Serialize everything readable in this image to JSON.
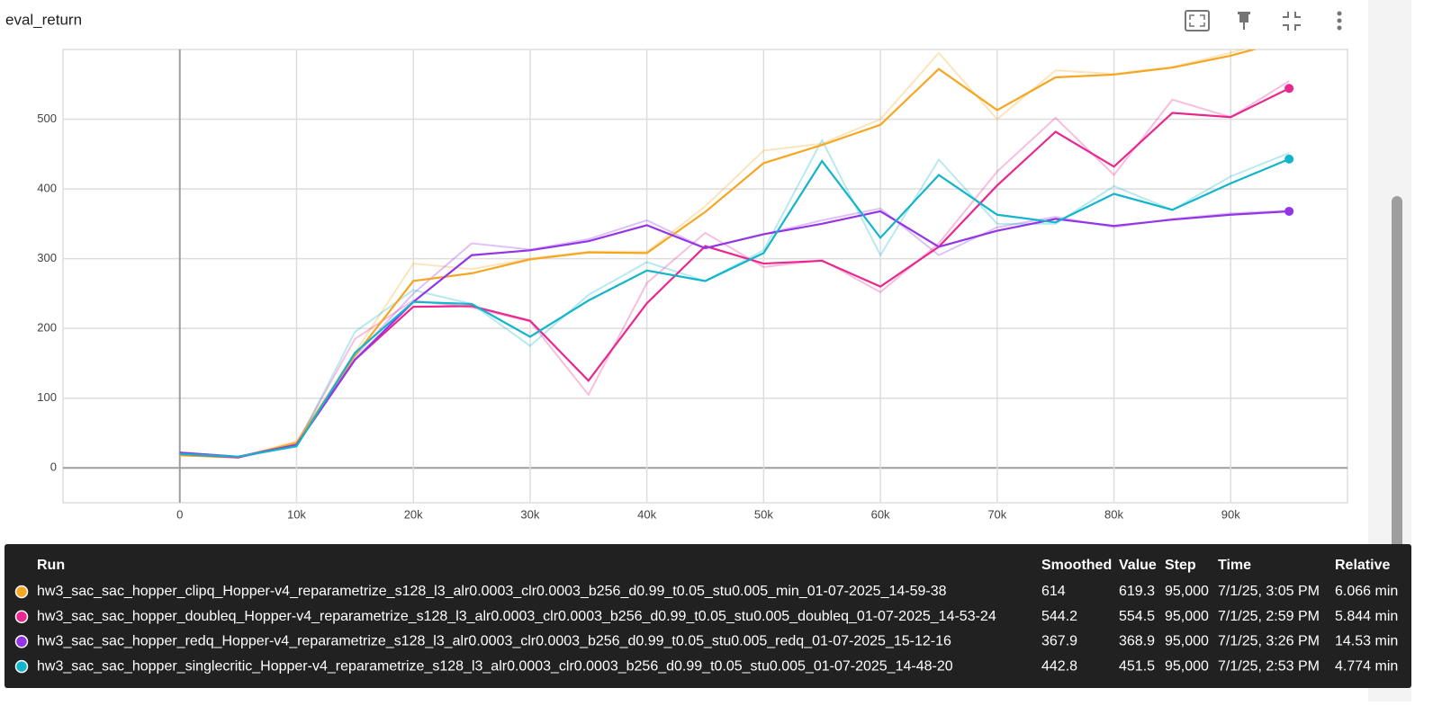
{
  "header": {
    "title": "eval_return"
  },
  "chart_data": {
    "type": "line",
    "x": [
      0,
      5000,
      10000,
      15000,
      20000,
      25000,
      30000,
      35000,
      40000,
      45000,
      50000,
      55000,
      60000,
      65000,
      70000,
      75000,
      80000,
      85000,
      90000,
      95000
    ],
    "xlim": [
      -10000,
      100000
    ],
    "ylim": [
      -50,
      600
    ],
    "xticks": [
      0,
      {
        "value": 10000,
        "label": "10k"
      },
      {
        "value": 20000,
        "label": "20k"
      },
      {
        "value": 30000,
        "label": "30k"
      },
      {
        "value": 40000,
        "label": "40k"
      },
      {
        "value": 50000,
        "label": "50k"
      },
      {
        "value": 60000,
        "label": "60k"
      },
      {
        "value": 70000,
        "label": "70k"
      },
      {
        "value": 80000,
        "label": "80k"
      },
      {
        "value": 90000,
        "label": "90k"
      }
    ],
    "yticks": [
      0,
      100,
      200,
      300,
      400,
      500
    ],
    "grid": true,
    "series": [
      {
        "name": "hw3_sac_sac_hopper_clipq_Hopper-v4_reparametrize_s128_l3_alr0.0003_clr0.0003_b256_d0.99_t0.05_stu0.005_min_01-07-2025_14-59-38",
        "color": "#f5a623",
        "values": [
          18,
          15,
          36,
          161,
          268,
          279,
          299,
          309,
          308,
          367,
          437,
          463,
          492,
          572,
          513,
          560,
          564,
          574,
          591,
          614
        ],
        "raw_values": [
          18,
          15,
          38,
          165,
          293,
          285,
          300,
          310,
          310,
          375,
          455,
          465,
          500,
          595,
          500,
          570,
          565,
          575,
          595,
          619.3
        ]
      },
      {
        "name": "hw3_sac_sac_hopper_doubleq_Hopper-v4_reparametrize_s128_l3_alr0.0003_clr0.0003_b256_d0.99_t0.05_stu0.005_doubleq_01-07-2025_14-53-24",
        "color": "#e8288f",
        "values": [
          20,
          15,
          33,
          155,
          231,
          232,
          211,
          125,
          236,
          318,
          293,
          297,
          260,
          317,
          405,
          482,
          432,
          509,
          503,
          544.2
        ],
        "raw_values": [
          20,
          15,
          35,
          185,
          240,
          230,
          210,
          105,
          265,
          337,
          288,
          298,
          252,
          322,
          425,
          502,
          420,
          528,
          503,
          554.5
        ]
      },
      {
        "name": "hw3_sac_sac_hopper_redq_Hopper-v4_reparametrize_s128_l3_alr0.0003_clr0.0003_b256_d0.99_t0.05_stu0.005_redq_01-07-2025_15-12-16",
        "color": "#9334e6",
        "values": [
          22,
          16,
          33,
          155,
          238,
          305,
          312,
          325,
          348,
          315,
          335,
          350,
          368,
          317,
          340,
          357,
          347,
          356,
          363,
          367.9
        ],
        "raw_values": [
          22,
          16,
          35,
          160,
          250,
          322,
          313,
          328,
          355,
          315,
          335,
          355,
          372,
          305,
          345,
          360,
          345,
          357,
          365,
          368.9
        ]
      },
      {
        "name": "hw3_sac_sac_hopper_singlecritic_Hopper-v4_reparametrize_s128_l3_alr0.0003_clr0.0003_b256_d0.99_t0.05_stu0.005_01-07-2025_14-48-20",
        "color": "#12b5cb",
        "values": [
          20,
          16,
          31,
          165,
          238,
          235,
          188,
          240,
          283,
          268,
          308,
          440,
          330,
          420,
          363,
          352,
          393,
          370,
          408,
          442.8
        ],
        "raw_values": [
          20,
          16,
          32,
          195,
          255,
          235,
          175,
          248,
          295,
          268,
          312,
          470,
          305,
          442,
          350,
          350,
          404,
          370,
          418,
          451.5
        ]
      }
    ]
  },
  "tooltip": {
    "headers": [
      "Run",
      "Smoothed",
      "Value",
      "Step",
      "Time",
      "Relative"
    ],
    "rows": [
      [
        "614",
        "619.3",
        "95,000",
        "7/1/25, 3:05 PM",
        "6.066 min"
      ],
      [
        "544.2",
        "554.5",
        "95,000",
        "7/1/25, 2:59 PM",
        "5.844 min"
      ],
      [
        "367.9",
        "368.9",
        "95,000",
        "7/1/25, 3:26 PM",
        "14.53 min"
      ],
      [
        "442.8",
        "451.5",
        "95,000",
        "7/1/25, 2:53 PM",
        "4.774 min"
      ]
    ]
  }
}
